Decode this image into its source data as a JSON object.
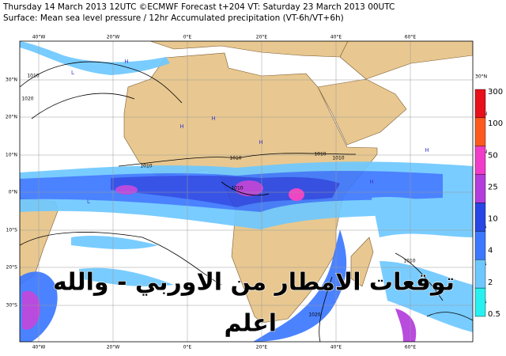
{
  "header": {
    "line1": "Thursday 14 March 2013 12UTC ©ECMWF Forecast t+204 VT: Saturday 23 March 2013 00UTC",
    "line2": "Surface: Mean sea level pressure / 12hr Accumulated precipitation (VT-6h/VT+6h)"
  },
  "map": {
    "longitude_labels": [
      "40°W",
      "20°W",
      "0°E",
      "20°E",
      "40°E",
      "60°E"
    ],
    "latitude_labels": [
      "30°N",
      "20°N",
      "10°N",
      "0°N",
      "10°S",
      "20°S",
      "30°S"
    ],
    "isobar_labels": [
      "1010",
      "1020",
      "1010",
      "1010",
      "1010",
      "1010",
      "1010",
      "1020",
      "1010"
    ],
    "pressure_centres": [
      "H",
      "L",
      "H",
      "H",
      "H",
      "L",
      "H",
      "H"
    ]
  },
  "colorbar": {
    "labels": [
      "300",
      "100",
      "50",
      "25",
      "10",
      "4",
      "2",
      "0.5"
    ],
    "colors": [
      "#e8101a",
      "#ff5a1e",
      "#f03cc8",
      "#b43cdc",
      "#2846e6",
      "#3c78ff",
      "#6ec8ff",
      "#28f0f0"
    ]
  },
  "overlay": {
    "line1": "توقعات الامطار من الاوربي - والله",
    "line2": "اعلم"
  }
}
